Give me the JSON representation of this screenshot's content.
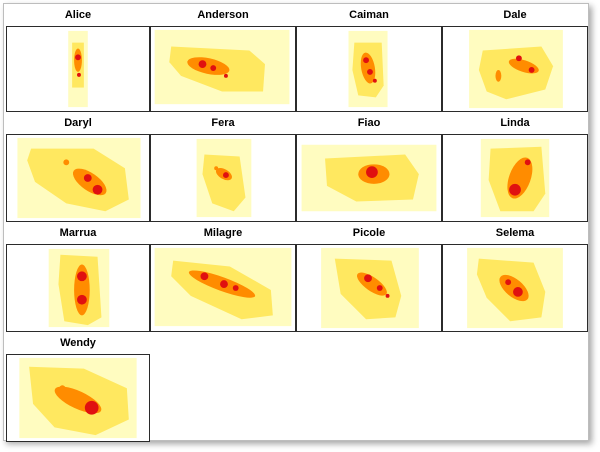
{
  "panels": [
    {
      "name": "Alice"
    },
    {
      "name": "Anderson"
    },
    {
      "name": "Caiman"
    },
    {
      "name": "Dale"
    },
    {
      "name": "Daryl"
    },
    {
      "name": "Fera"
    },
    {
      "name": "Fiao"
    },
    {
      "name": "Linda"
    },
    {
      "name": "Marrua"
    },
    {
      "name": "Milagre"
    },
    {
      "name": "Picole"
    },
    {
      "name": "Selema"
    },
    {
      "name": "Wendy"
    }
  ],
  "colors": {
    "outer": "#fffcc0",
    "middle": "#ffe860",
    "inner": "#ff8c00",
    "core": "#e01010"
  }
}
